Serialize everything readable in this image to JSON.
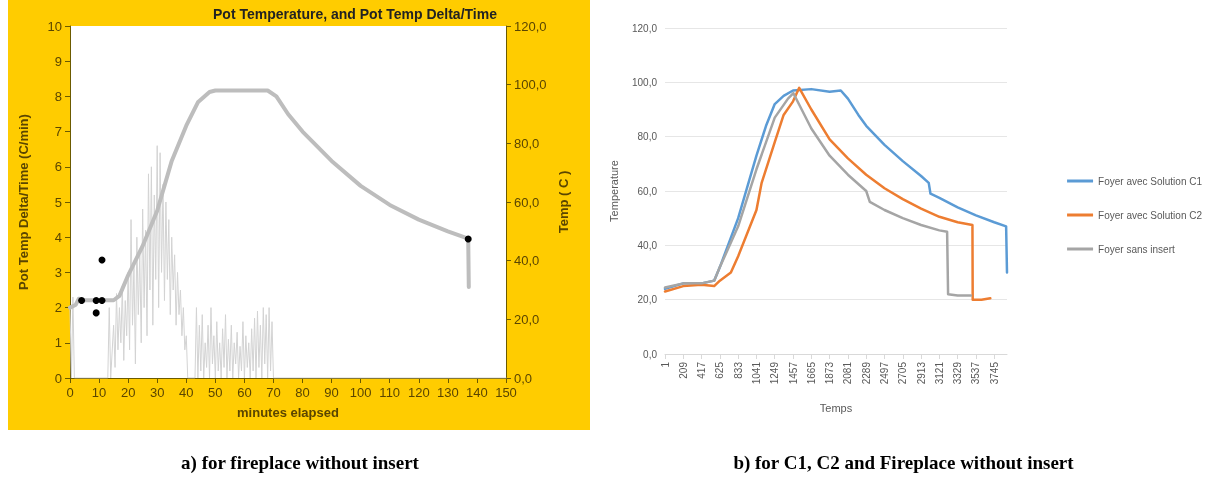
{
  "chart_data": [
    {
      "type": "line",
      "title": "Pot Temperature, and Pot Temp Delta/Time",
      "xlabel": "minutes elapsed",
      "ylabel": "Pot Temp Delta/Time (C/min)",
      "y2label": "Temp ( C )",
      "xlim": [
        0,
        150
      ],
      "xticks": [
        0,
        10,
        20,
        30,
        40,
        50,
        60,
        70,
        80,
        90,
        100,
        110,
        120,
        130,
        140,
        150
      ],
      "ylim": [
        0,
        10
      ],
      "yticks": [
        0,
        1,
        2,
        3,
        4,
        5,
        6,
        7,
        8,
        9,
        10
      ],
      "y2lim": [
        0,
        120
      ],
      "y2ticks": [
        {
          "value": 0,
          "label": "0,0"
        },
        {
          "value": 20,
          "label": "20,0"
        },
        {
          "value": 40,
          "label": "40,0"
        },
        {
          "value": 60,
          "label": "60,0"
        },
        {
          "value": 80,
          "label": "80,0"
        },
        {
          "value": 100,
          "label": "100,0"
        },
        {
          "value": 120,
          "label": "120,0"
        }
      ],
      "grid": false,
      "legend": false,
      "marker": "none",
      "line_style": "solid",
      "series": [
        {
          "type": "line",
          "color": "#d3d3d3",
          "x": [
            0,
            0.5,
            1,
            1.5,
            3,
            13,
            13.5,
            14,
            15,
            15.5,
            16,
            16.5,
            17,
            17.5,
            18,
            18.5,
            19,
            19.5,
            20,
            20.5,
            21,
            21.5,
            22,
            22.5,
            23,
            23.5,
            24,
            24.5,
            25,
            25.5,
            26,
            26.5,
            27,
            27.5,
            28,
            28.5,
            29,
            29.5,
            30,
            30.5,
            31,
            31.5,
            32,
            32.5,
            33,
            33.5,
            34,
            34.5,
            35,
            35.5,
            36,
            36.5,
            37,
            37.5,
            38,
            38.5,
            39,
            39.5,
            40,
            40.5,
            43,
            43.5,
            44,
            44.5,
            45,
            45.5,
            46,
            46.5,
            47,
            47.5,
            48,
            48.5,
            49,
            49.5,
            50,
            50.5,
            51,
            51.5,
            52,
            52.5,
            53,
            53.5,
            54,
            54.5,
            55,
            55.5,
            56,
            56.5,
            57,
            57.5,
            58,
            58.5,
            59,
            59.5,
            60,
            60.5,
            61,
            61.5,
            62,
            62.5,
            63,
            63.5,
            64,
            64.5,
            65,
            65.5,
            66,
            66.5,
            67,
            67.5,
            68,
            68.5,
            69,
            69.5,
            70,
            71,
            150
          ],
          "values": [
            2.0,
            0,
            2.3,
            0,
            0,
            0,
            2.0,
            0,
            1.5,
            0.3,
            2.4,
            0.8,
            2.0,
            1.0,
            2.6,
            0.5,
            2.2,
            1.2,
            3.0,
            0.8,
            4.5,
            1.5,
            3.2,
            0.4,
            4.0,
            1.8,
            3.5,
            1.0,
            4.8,
            2.0,
            4.2,
            1.2,
            5.8,
            2.5,
            6.0,
            1.5,
            5.2,
            2.8,
            6.6,
            2.0,
            6.4,
            3.0,
            5.5,
            2.2,
            5.0,
            2.8,
            4.5,
            1.8,
            4.0,
            2.5,
            3.5,
            1.5,
            3.0,
            1.8,
            2.5,
            1.2,
            2.0,
            0.8,
            1.2,
            0,
            0,
            2.0,
            0,
            1.5,
            0.2,
            1.8,
            0,
            1.0,
            0.3,
            1.5,
            0,
            2.0,
            0.4,
            1.2,
            0,
            1.6,
            0.2,
            1.0,
            0,
            1.4,
            0.3,
            1.8,
            0,
            1.1,
            0.2,
            1.5,
            0,
            1.0,
            0.4,
            1.3,
            0,
            0.9,
            0.2,
            1.6,
            0,
            1.2,
            0.3,
            1.0,
            0,
            1.4,
            0.2,
            1.7,
            0,
            1.9,
            0.3,
            1.5,
            0,
            2.0,
            0.4,
            1.8,
            0,
            2.0,
            0.2,
            1.6,
            0,
            0,
            0
          ]
        },
        {
          "type": "line",
          "axis": "y2",
          "color": "#bdbdbd",
          "x": [
            0,
            2,
            3,
            5,
            15,
            17,
            20,
            25,
            30,
            35,
            40,
            44,
            48,
            50,
            60,
            68,
            71,
            75,
            80,
            90,
            100,
            110,
            120,
            130,
            137,
            137.2
          ],
          "values": [
            24,
            25,
            27,
            26.5,
            26.5,
            28,
            35,
            45,
            57,
            74,
            86,
            94,
            97.5,
            98,
            98,
            98,
            96,
            90,
            84,
            74,
            65.5,
            59,
            54,
            50,
            47.5,
            31
          ]
        },
        {
          "type": "scatter",
          "color": "#000000",
          "x": [
            4,
            9,
            9,
            11,
            11,
            137
          ],
          "values": [
            2.2,
            2.2,
            1.85,
            3.35,
            2.2,
            3.95
          ]
        }
      ],
      "annotations": [
        "a) for fireplace without insert"
      ]
    },
    {
      "type": "line",
      "xlabel": "Temps",
      "ylabel": "Temperature",
      "xlim": [
        1,
        3890
      ],
      "xticks": [
        1,
        209,
        417,
        625,
        833,
        1041,
        1249,
        1457,
        1665,
        1873,
        2081,
        2289,
        2497,
        2705,
        2913,
        3121,
        3329,
        3537,
        3745
      ],
      "ylim": [
        0,
        120
      ],
      "yticks": [
        {
          "value": 0,
          "label": "0,0"
        },
        {
          "value": 20,
          "label": "20,0"
        },
        {
          "value": 40,
          "label": "40,0"
        },
        {
          "value": 60,
          "label": "60,0"
        },
        {
          "value": 80,
          "label": "80,0"
        },
        {
          "value": 100,
          "label": "100,0"
        },
        {
          "value": 120,
          "label": "120,0"
        }
      ],
      "grid": "y",
      "legend": "right",
      "marker": "none",
      "line_style": "solid",
      "series": [
        {
          "name": "Foyer avec Solution C1",
          "color": "#5b9bd5",
          "x": [
            1,
            209,
            417,
            560,
            625,
            833,
            1041,
            1150,
            1249,
            1350,
            1457,
            1665,
            1873,
            2000,
            2081,
            2200,
            2289,
            2497,
            2705,
            2913,
            3000,
            3020,
            3121,
            3329,
            3537,
            3745,
            3880,
            3890
          ],
          "values": [
            24,
            26,
            26,
            27,
            32,
            50,
            73,
            84,
            92,
            95,
            97,
            97.5,
            96.5,
            97,
            94,
            88,
            84,
            77,
            71,
            65.5,
            63,
            59,
            57.5,
            54,
            51,
            48.5,
            47,
            30
          ]
        },
        {
          "name": "Foyer avec Solution C2",
          "color": "#ed7d31",
          "x": [
            1,
            209,
            417,
            560,
            625,
            750,
            833,
            1041,
            1100,
            1249,
            1350,
            1457,
            1527,
            1665,
            1873,
            2081,
            2289,
            2497,
            2705,
            2913,
            3121,
            3329,
            3497,
            3500,
            3600,
            3700
          ],
          "values": [
            23,
            25,
            25.5,
            25,
            27,
            30,
            36,
            53,
            63,
            78,
            88,
            93,
            98,
            90,
            79,
            72,
            66,
            61,
            57,
            53.5,
            50.5,
            48.5,
            47.5,
            20,
            20,
            20.5
          ]
        },
        {
          "name": "Foyer sans insert",
          "color": "#a5a5a5",
          "x": [
            1,
            209,
            417,
            560,
            625,
            833,
            1041,
            1249,
            1400,
            1461,
            1665,
            1873,
            2081,
            2289,
            2330,
            2497,
            2705,
            2913,
            3121,
            3209,
            3220,
            3329,
            3480
          ],
          "values": [
            24.5,
            26,
            26,
            27,
            32,
            47,
            68,
            87,
            94,
            96,
            83,
            73,
            66,
            60,
            56,
            53,
            50,
            47.5,
            45.5,
            45,
            22,
            21.5,
            21.5
          ]
        }
      ],
      "annotations": [
        "b) for C1, C2 and Fireplace without insert"
      ]
    }
  ]
}
